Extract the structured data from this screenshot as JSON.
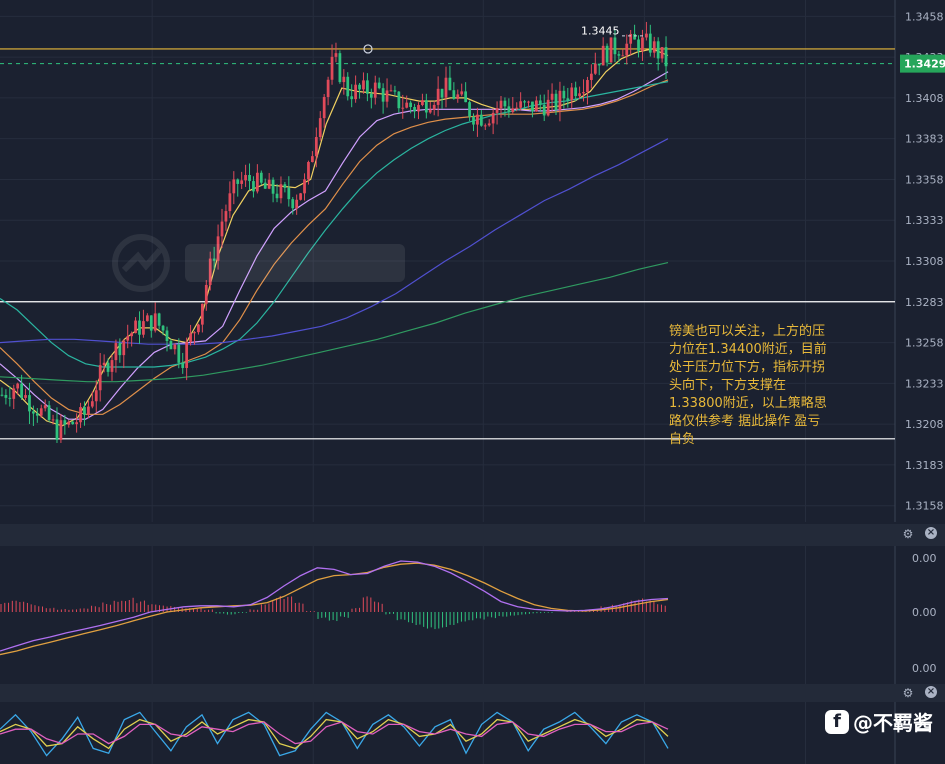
{
  "chart_data": [
    {
      "type": "candlestick",
      "title": "",
      "instrument": "",
      "y_axis_ticks": [
        "1.3458",
        "1.3433",
        "1.3408",
        "1.3383",
        "1.3358",
        "1.3333",
        "1.3308",
        "1.3283",
        "1.3258",
        "1.3233",
        "1.3208",
        "1.3183",
        "1.3158"
      ],
      "ylim": [
        1.3148,
        1.3468
      ],
      "current_price": "1.3429",
      "high_label": "1.3445",
      "resistance_line": 1.3438,
      "support_upper_line": 1.3283,
      "support_lower_line": 1.3199,
      "close_path": [
        1.3226,
        1.3232,
        1.3222,
        1.3214,
        1.3204,
        1.3208,
        1.3214,
        1.3236,
        1.3252,
        1.3262,
        1.3268,
        1.3272,
        1.3262,
        1.3248,
        1.3268,
        1.3302,
        1.3336,
        1.3356,
        1.3358,
        1.3352,
        1.335,
        1.3346,
        1.3356,
        1.3402,
        1.3432,
        1.3412,
        1.3412,
        1.3414,
        1.3408,
        1.3404,
        1.3402,
        1.3408,
        1.3414,
        1.3408,
        1.3398,
        1.3396,
        1.3404,
        1.3402,
        1.3402,
        1.3404,
        1.3404,
        1.3412,
        1.3418,
        1.3432,
        1.3438,
        1.344,
        1.3442,
        1.344,
        1.343
      ],
      "moving_averages": [
        {
          "color": "#f0d060",
          "values": [
            1.3235,
            1.3228,
            1.3218,
            1.321,
            1.3207,
            1.3212,
            1.3228,
            1.3248,
            1.326,
            1.3267,
            1.3267,
            1.326,
            1.3258,
            1.3275,
            1.331,
            1.3336,
            1.3351,
            1.3355,
            1.3354,
            1.3353,
            1.3358,
            1.3392,
            1.3414,
            1.3412,
            1.3411,
            1.341,
            1.3408,
            1.3406,
            1.3406,
            1.3408,
            1.3408,
            1.3404,
            1.3401,
            1.3401,
            1.3401,
            1.3402,
            1.3403,
            1.3406,
            1.3412,
            1.3424,
            1.3432,
            1.3436,
            1.3438,
            1.3434
          ]
        },
        {
          "color": "#d0a0ff",
          "values": [
            1.3245,
            1.3236,
            1.3226,
            1.3217,
            1.3211,
            1.3211,
            1.3217,
            1.323,
            1.3242,
            1.3252,
            1.3257,
            1.3258,
            1.3259,
            1.3268,
            1.329,
            1.3311,
            1.3328,
            1.3338,
            1.3345,
            1.3351,
            1.3368,
            1.3384,
            1.3394,
            1.3398,
            1.34,
            1.3401,
            1.3401,
            1.3401,
            1.3401,
            1.3401,
            1.3401,
            1.34,
            1.34,
            1.3401,
            1.3402,
            1.3404,
            1.3407,
            1.3412,
            1.3418,
            1.3424
          ]
        },
        {
          "color": "#e0904a",
          "values": [
            1.3255,
            1.3245,
            1.3234,
            1.3224,
            1.3217,
            1.3214,
            1.3214,
            1.322,
            1.3228,
            1.3236,
            1.3243,
            1.3247,
            1.3251,
            1.3258,
            1.3272,
            1.329,
            1.3306,
            1.3319,
            1.333,
            1.334,
            1.3355,
            1.3369,
            1.3379,
            1.3386,
            1.339,
            1.3393,
            1.3395,
            1.3396,
            1.3397,
            1.3398,
            1.3398,
            1.3398,
            1.3399,
            1.34,
            1.3401,
            1.3403,
            1.3406,
            1.341,
            1.3415,
            1.3419
          ]
        },
        {
          "color": "#2ab5a0",
          "values": [
            1.3285,
            1.3278,
            1.3268,
            1.3258,
            1.325,
            1.3245,
            1.3243,
            1.3243,
            1.3243,
            1.3243,
            1.3244,
            1.3246,
            1.3249,
            1.3254,
            1.326,
            1.327,
            1.3283,
            1.3298,
            1.3313,
            1.3327,
            1.334,
            1.3352,
            1.3362,
            1.337,
            1.3377,
            1.3383,
            1.3388,
            1.3392,
            1.3395,
            1.3398,
            1.34,
            1.3403,
            1.3405,
            1.3406,
            1.3408,
            1.341,
            1.3412,
            1.3414,
            1.3416,
            1.3418
          ]
        },
        {
          "color": "#5050d0",
          "values": [
            1.3258,
            1.3259,
            1.326,
            1.326,
            1.3259,
            1.3258,
            1.3257,
            1.3257,
            1.3257,
            1.3258,
            1.326,
            1.3262,
            1.3265,
            1.3268,
            1.3273,
            1.328,
            1.3288,
            1.3298,
            1.3308,
            1.3317,
            1.3327,
            1.3336,
            1.3345,
            1.3352,
            1.336,
            1.3367,
            1.3375,
            1.3383
          ]
        },
        {
          "color": "#2f9a60",
          "values": [
            1.3237,
            1.3236,
            1.3235,
            1.3234,
            1.3234,
            1.3235,
            1.3236,
            1.3238,
            1.3241,
            1.3244,
            1.3248,
            1.3252,
            1.3256,
            1.326,
            1.3265,
            1.327,
            1.3276,
            1.3281,
            1.3286,
            1.329,
            1.3294,
            1.3298,
            1.3303,
            1.3307
          ]
        }
      ]
    },
    {
      "type": "bar",
      "title": "",
      "y_axis_ticks": [
        "0.00",
        "0.00",
        "0.00"
      ],
      "histogram": [
        0.18,
        0.22,
        0.2,
        0.15,
        0.1,
        0.06,
        0.05,
        0.07,
        0.12,
        0.2,
        0.28,
        0.3,
        0.22,
        0.15,
        0.13,
        0.12,
        0.1,
        0.08,
        0.05,
        -0.03,
        -0.05,
        -0.02,
        0.06,
        0.2,
        0.32,
        0.3,
        0.18,
        0.02,
        -0.15,
        -0.22,
        -0.12,
        0.08,
        0.3,
        0.2,
        -0.05,
        -0.2,
        -0.28,
        -0.32,
        -0.33,
        -0.3,
        -0.26,
        -0.22,
        -0.17,
        -0.12,
        -0.09,
        -0.07,
        -0.05,
        -0.03,
        -0.02,
        0.0,
        0.02,
        0.03,
        0.05,
        0.12,
        0.18,
        0.24,
        0.26,
        0.22,
        0.15
      ],
      "dif_line": [
        -0.75,
        -0.65,
        -0.55,
        -0.48,
        -0.4,
        -0.33,
        -0.26,
        -0.18,
        -0.1,
        0.0,
        0.05,
        0.1,
        0.12,
        0.12,
        0.1,
        0.14,
        0.28,
        0.5,
        0.7,
        0.85,
        0.82,
        0.72,
        0.74,
        0.88,
        0.98,
        0.96,
        0.88,
        0.75,
        0.58,
        0.4,
        0.2,
        0.1,
        0.05,
        0.03,
        0.02,
        0.03,
        0.06,
        0.12,
        0.2,
        0.24,
        0.26
      ],
      "dea_line": [
        -0.82,
        -0.75,
        -0.66,
        -0.58,
        -0.5,
        -0.42,
        -0.34,
        -0.26,
        -0.17,
        -0.08,
        0.0,
        0.04,
        0.08,
        0.1,
        0.12,
        0.13,
        0.18,
        0.3,
        0.46,
        0.62,
        0.7,
        0.72,
        0.76,
        0.86,
        0.92,
        0.94,
        0.9,
        0.82,
        0.7,
        0.56,
        0.4,
        0.26,
        0.14,
        0.07,
        0.03,
        0.02,
        0.04,
        0.08,
        0.14,
        0.2,
        0.24
      ]
    },
    {
      "type": "line",
      "title": "",
      "series": [
        {
          "color": "#3aa8e8",
          "values": [
            0.2,
            0.8,
            0.1,
            -0.9,
            -0.2,
            0.7,
            -0.6,
            -0.8,
            0.6,
            0.9,
            0.1,
            -0.7,
            0.3,
            0.8,
            -0.4,
            0.6,
            0.9,
            0.4,
            -0.9,
            -0.7,
            0.2,
            0.9,
            0.5,
            -0.6,
            0.4,
            0.8,
            0.3,
            -0.5,
            0.3,
            0.6,
            -0.8,
            0.4,
            0.9,
            0.5,
            -0.7,
            0.2,
            0.5,
            0.9,
            0.3,
            -0.4,
            0.5,
            0.8,
            0.5,
            -0.6
          ]
        },
        {
          "color": "#e0d050",
          "values": [
            0.1,
            0.4,
            0.2,
            -0.5,
            -0.4,
            0.3,
            -0.2,
            -0.6,
            0.2,
            0.6,
            0.4,
            -0.3,
            0.0,
            0.5,
            0.0,
            0.3,
            0.6,
            0.5,
            -0.4,
            -0.6,
            -0.1,
            0.6,
            0.5,
            -0.2,
            0.1,
            0.6,
            0.4,
            -0.1,
            0.0,
            0.4,
            -0.3,
            0.0,
            0.6,
            0.5,
            -0.3,
            0.0,
            0.3,
            0.6,
            0.4,
            -0.1,
            0.2,
            0.6,
            0.5,
            -0.1
          ]
        },
        {
          "color": "#e060c0",
          "values": [
            0.0,
            0.2,
            0.2,
            -0.2,
            -0.4,
            0.0,
            0.0,
            -0.4,
            -0.1,
            0.4,
            0.4,
            0.0,
            -0.1,
            0.3,
            0.2,
            0.1,
            0.4,
            0.5,
            0.0,
            -0.4,
            -0.3,
            0.3,
            0.5,
            0.1,
            0.0,
            0.4,
            0.4,
            0.1,
            0.0,
            0.2,
            0.0,
            -0.1,
            0.4,
            0.5,
            0.0,
            -0.1,
            0.2,
            0.4,
            0.4,
            0.1,
            0.1,
            0.4,
            0.5,
            0.2
          ]
        }
      ]
    }
  ],
  "annotation": "镑美也可以关注，上方的压力位在1.34400附近，目前处于压力位下方，指标开拐头向下，下方支撑在1.33800附近，以上策略思路仅供参考 据此操作 盈亏自负",
  "brand": {
    "logo_letter": "f",
    "handle": "@不羁酱"
  },
  "colors": {
    "bg": "#1b2130",
    "up": "#e04a5a",
    "down": "#2fc27e",
    "price_tag": "#26a65b",
    "resistance": "#e8b93a"
  },
  "icons": {
    "pane_settings": "gear-icon",
    "pane_close": "close-icon"
  }
}
